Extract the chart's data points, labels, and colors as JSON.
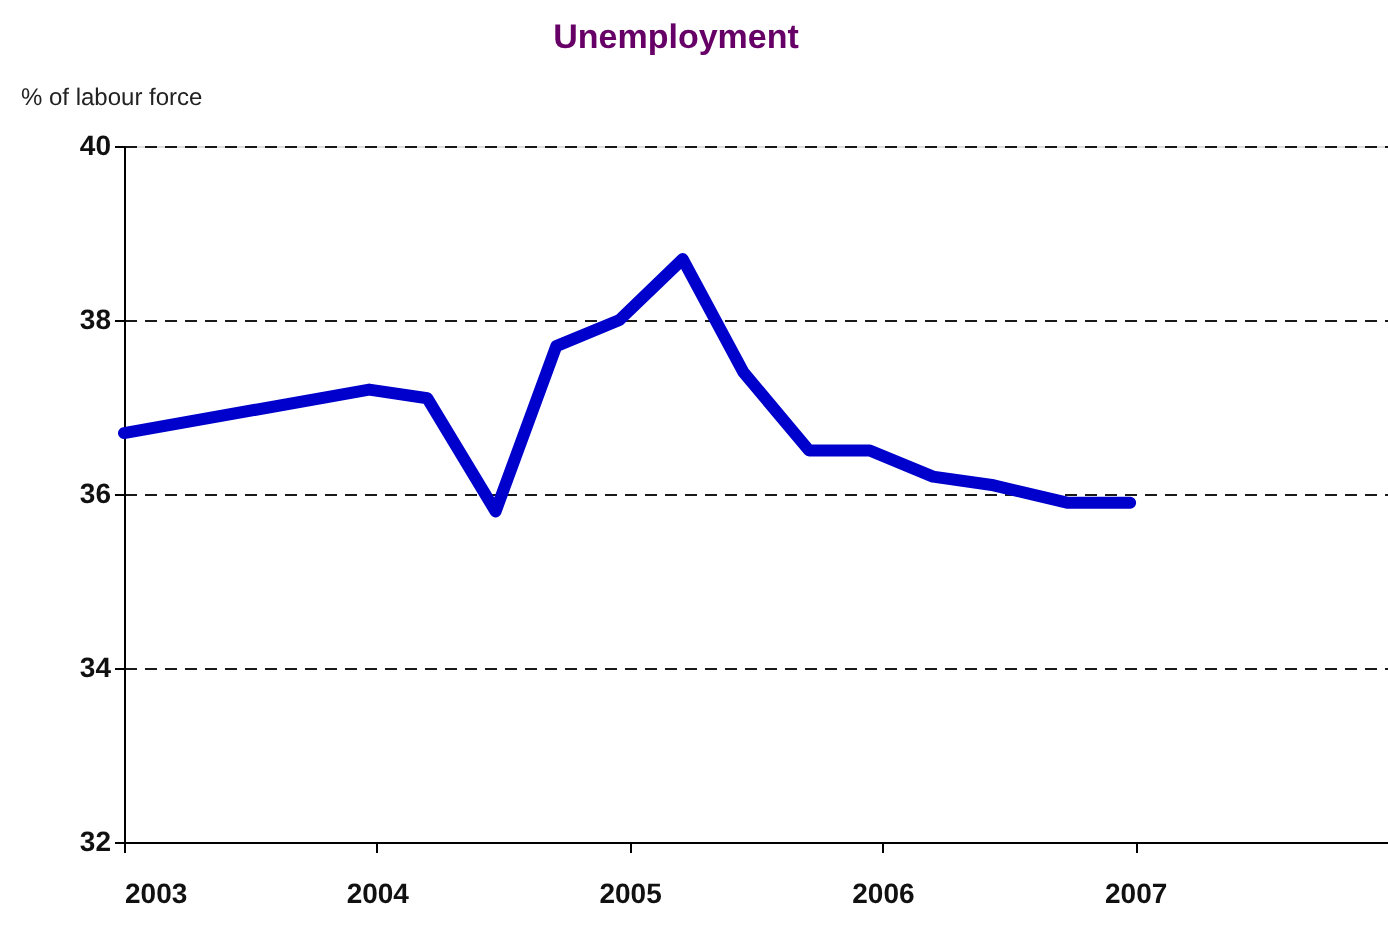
{
  "chart_data": {
    "type": "line",
    "title": "Unemployment",
    "ylabel": "% of labour force",
    "x": [
      2003.0,
      2003.97,
      2004.2,
      2004.47,
      2004.71,
      2004.96,
      2005.21,
      2005.45,
      2005.71,
      2005.95,
      2006.2,
      2006.44,
      2006.73,
      2006.98
    ],
    "series": [
      {
        "color": "#0000cc",
        "values": [
          36.7,
          37.2,
          37.1,
          35.8,
          37.7,
          38.0,
          38.7,
          37.4,
          36.5,
          36.5,
          36.2,
          36.1,
          35.9,
          35.9
        ]
      }
    ],
    "xlim": [
      2003,
      2008
    ],
    "xticks": [
      2003,
      2004,
      2005,
      2006,
      2007
    ],
    "ylim": [
      32,
      40
    ],
    "yticks": [
      32,
      34,
      36,
      38,
      40
    ],
    "grid": "y",
    "legend": false,
    "marker": "none",
    "line_style": "solid"
  }
}
